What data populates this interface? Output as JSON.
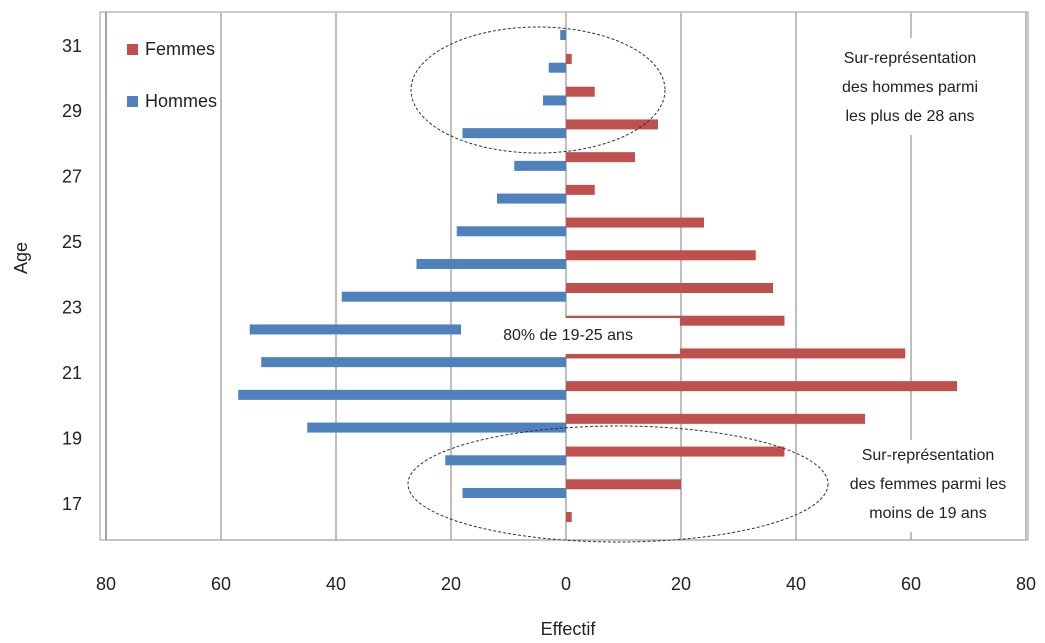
{
  "chart_data": {
    "type": "pyramid",
    "xlabel": "Effectif",
    "ylabel": "Age",
    "categories": [
      "17",
      null,
      "19",
      null,
      "21",
      null,
      "23",
      null,
      "25",
      null,
      "27",
      null,
      "29",
      null,
      "31"
    ],
    "series": [
      {
        "name": "Femmes",
        "color": "#c0504d",
        "values": [
          1,
          20,
          38,
          52,
          68,
          59,
          38,
          36,
          33,
          24,
          5,
          12,
          16,
          5,
          1
        ]
      },
      {
        "name": "Hommes",
        "color": "#4f81bd",
        "values": [
          -18,
          -21,
          -45,
          -57,
          -53,
          -55,
          -39,
          -26,
          -19,
          -12,
          -9,
          -18,
          -4,
          -3,
          -1
        ]
      }
    ],
    "xlim": [
      -80,
      80
    ],
    "xticks": [
      {
        "value": -80,
        "label": "80"
      },
      {
        "value": -60,
        "label": "60"
      },
      {
        "value": -40,
        "label": "40"
      },
      {
        "value": -20,
        "label": "20"
      },
      0,
      20,
      40,
      60,
      80
    ],
    "grid": true,
    "legend": "top-left",
    "annotations": [
      {
        "lines": [
          "Sur-représentation",
          "des hommes parmi",
          "les plus de 28 ans"
        ]
      },
      {
        "lines": [
          "80% de 19-25 ans"
        ]
      },
      {
        "lines": [
          "Sur-représentation",
          "des femmes parmi les",
          "moins de 19 ans"
        ]
      }
    ]
  }
}
